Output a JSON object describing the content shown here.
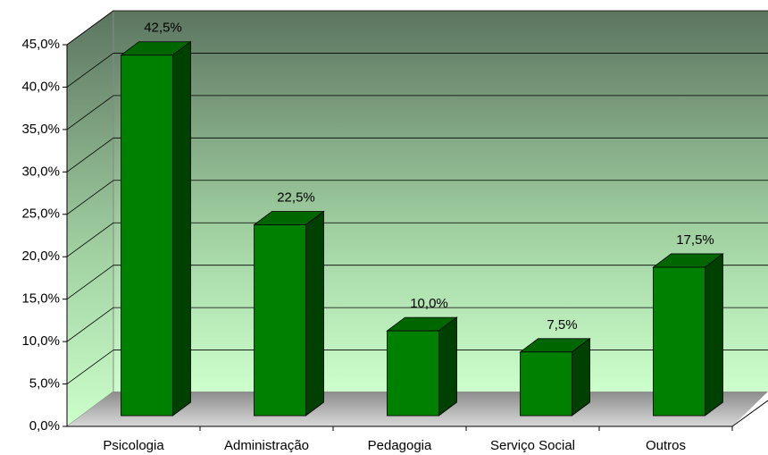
{
  "chart_data": {
    "type": "bar",
    "categories": [
      "Psicologia",
      "Administração",
      "Pedagogia",
      "Serviço Social",
      "Outros"
    ],
    "values": [
      42.5,
      22.5,
      10,
      7.5,
      17.5
    ],
    "value_labels": [
      "42,5%",
      "22,5%",
      "10,0%",
      "7,5%",
      "17,5%"
    ],
    "color": "#008000",
    "ylim": [
      0,
      45
    ],
    "yticks": [
      {
        "value": 0,
        "label": "0,0%"
      },
      {
        "value": 5,
        "label": "5,0%"
      },
      {
        "value": 10,
        "label": "10,0%"
      },
      {
        "value": 15,
        "label": "15,0%"
      },
      {
        "value": 20,
        "label": "20,0%"
      },
      {
        "value": 25,
        "label": "25,0%"
      },
      {
        "value": 30,
        "label": "30,0%"
      },
      {
        "value": 35,
        "label": "35,0%"
      },
      {
        "value": 40,
        "label": "40,0%"
      },
      {
        "value": 45,
        "label": "45,0%"
      }
    ],
    "grid": true
  }
}
